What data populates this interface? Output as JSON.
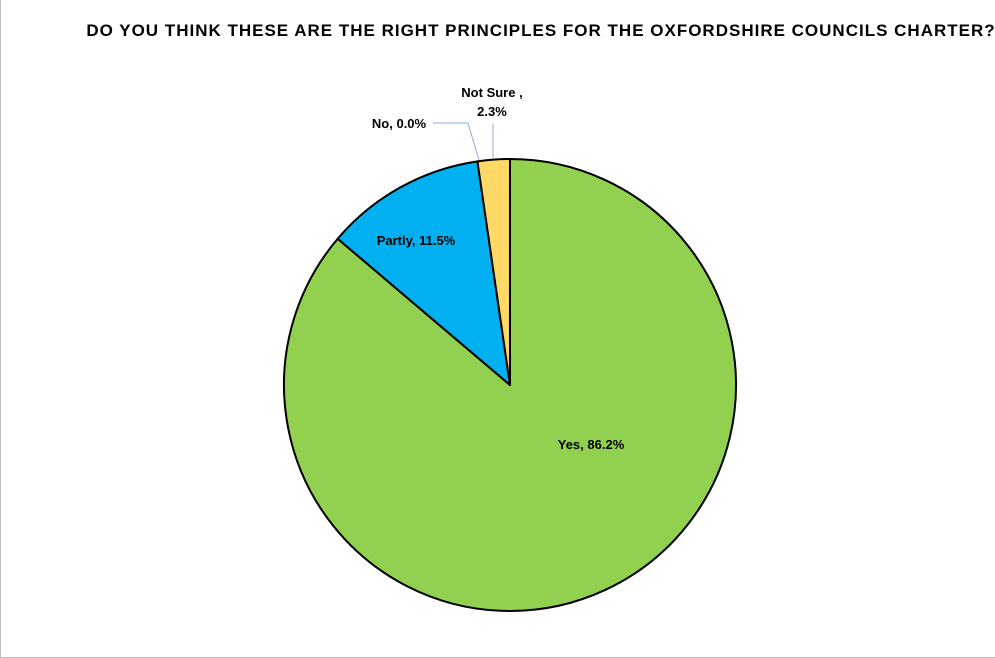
{
  "chart_data": {
    "type": "pie",
    "title": "DO YOU THINK THESE ARE THE RIGHT PRINCIPLES FOR THE OXFORDSHIRE COUNCILS CHARTER?",
    "slices": [
      {
        "label": "Yes",
        "value": 86.2,
        "display": "Yes, 86.2%",
        "color": "#92d050"
      },
      {
        "label": "Partly",
        "value": 11.5,
        "display": "Partly, 11.5%",
        "color": "#00b0f0"
      },
      {
        "label": "No",
        "value": 0.0,
        "display": "No, 0.0%",
        "color": "#ff0000"
      },
      {
        "label": "Not Sure",
        "value": 2.3,
        "display_line1": "Not Sure ,",
        "display_line2": "2.3%",
        "color": "#ffd966"
      }
    ]
  }
}
